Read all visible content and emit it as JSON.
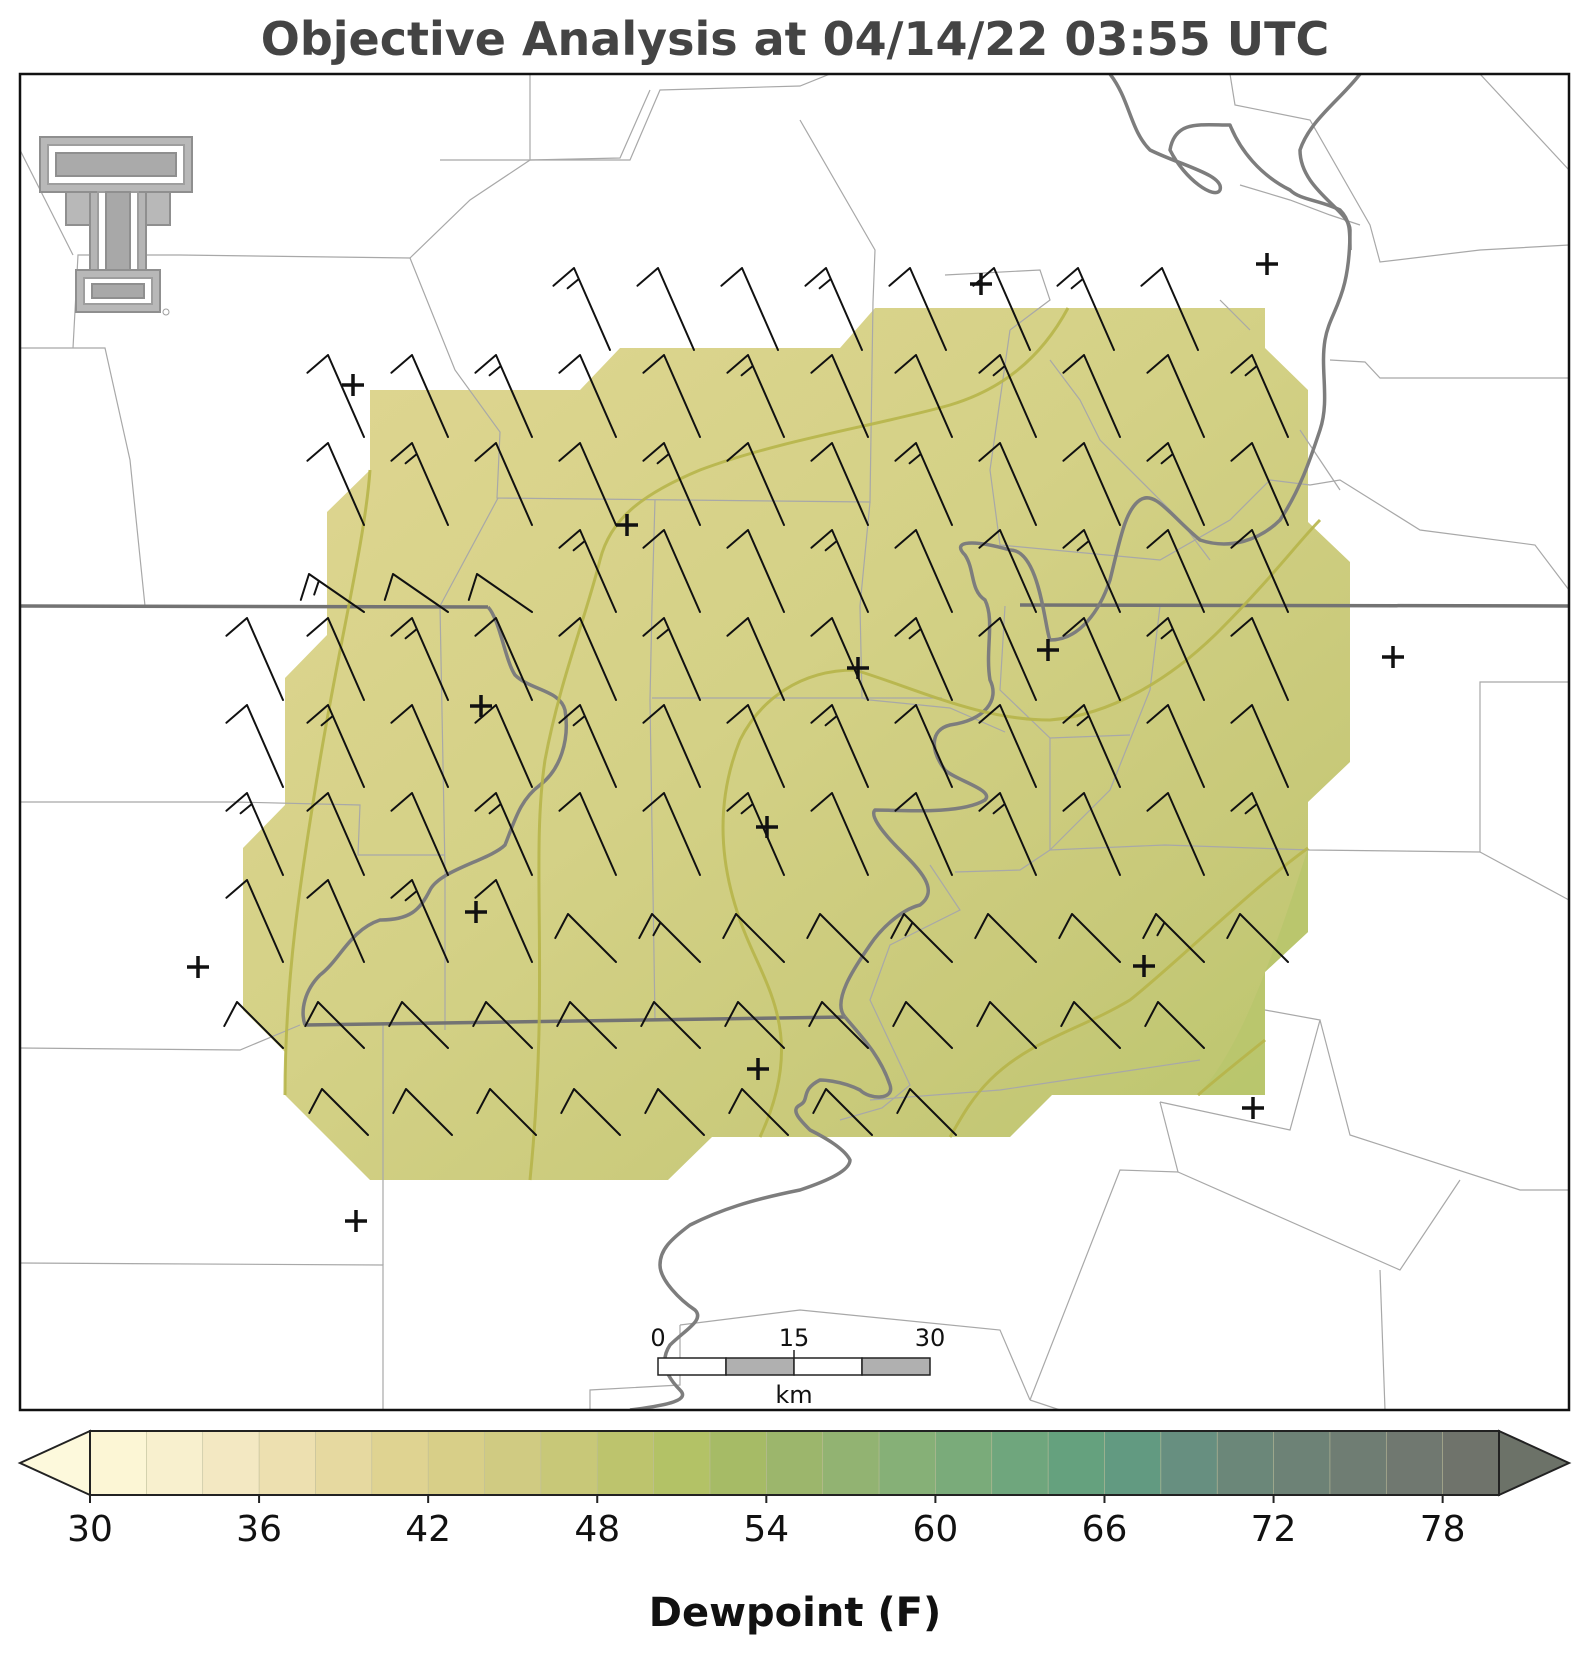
{
  "title": "Objective Analysis at 04/14/22 03:55 UTC",
  "colorbar": {
    "label": "Dewpoint (F)",
    "ticks": [
      "30",
      "36",
      "42",
      "48",
      "54",
      "60",
      "66",
      "72",
      "78"
    ],
    "min": 30,
    "max": 80,
    "step": 2,
    "colors": [
      "#fcf6d5",
      "#f8f0ce",
      "#f3e8c2",
      "#ede0b0",
      "#e6d9a0",
      "#dfd391",
      "#d8cf88",
      "#d0cb82",
      "#c8c878",
      "#bdc46d",
      "#b3c266",
      "#a6bb66",
      "#9cb66c",
      "#92b372",
      "#86b077",
      "#7aab7a",
      "#6fa67d",
      "#65a17e",
      "#629a81",
      "#678f80",
      "#6b8779",
      "#6d8276",
      "#6f7d73",
      "#707870",
      "#6f736b"
    ],
    "under_color": "#fdf9dc",
    "over_color": "#6c7268"
  },
  "scale_bar": {
    "unit": "km",
    "labels": [
      "0",
      "15",
      "30"
    ]
  },
  "logo": {
    "text": "Texas Tech Double T"
  },
  "colors": {
    "state_border": "#707070",
    "river": "#7a7a7a",
    "county_line": "#a8a8a8",
    "barb": "#111111",
    "contour": "#b5b545"
  }
}
